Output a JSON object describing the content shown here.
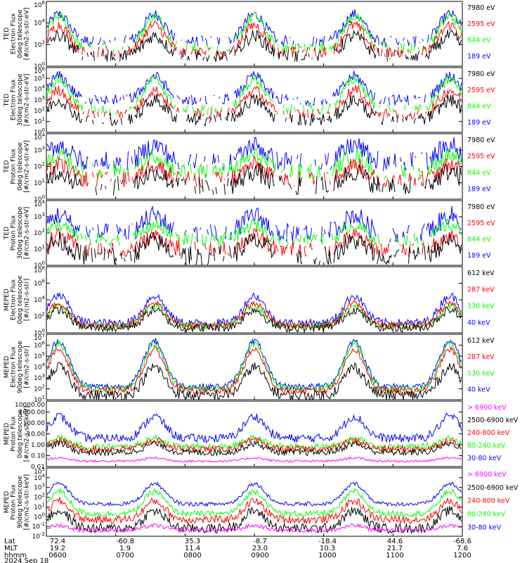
{
  "date_label": "2024 Sep 18",
  "ephemeris": {
    "row_labels": [
      "Lat",
      "MLT",
      "hhmm"
    ],
    "columns": [
      {
        "lat": "72.4",
        "mlt": "19.2",
        "hhmm": "0600"
      },
      {
        "lat": "-60.8",
        "mlt": "1.9",
        "hhmm": "0700"
      },
      {
        "lat": "35.3",
        "mlt": "11.4",
        "hhmm": "0800"
      },
      {
        "lat": "-8.7",
        "mlt": "23.0",
        "hhmm": "0900"
      },
      {
        "lat": "-18.4",
        "mlt": "10.3",
        "hhmm": "1000"
      },
      {
        "lat": "44.6",
        "mlt": "21.7",
        "hhmm": "1100"
      },
      {
        "lat": "-68.6",
        "mlt": "7.6",
        "hhmm": "1200"
      }
    ]
  },
  "colors": {
    "black": "#000000",
    "red": "#ff0000",
    "green": "#00ff00",
    "blue": "#0000ff",
    "magenta": "#ff00ff"
  },
  "chart_data": [
    {
      "type": "line",
      "ylabel": [
        "TED",
        "Electron Flux",
        "0deg telescope",
        "[#/cm2-s-str-eV]"
      ],
      "yscale": "log",
      "ylim_exp": [
        0,
        6
      ],
      "ytick_labels": [
        "10^0",
        "10^2",
        "10^4",
        "10^6"
      ],
      "legend": [
        {
          "label": "7980 eV",
          "color": "#000000"
        },
        {
          "label": "2595 eV",
          "color": "#ff0000"
        },
        {
          "label": "844 eV",
          "color": "#00ff00"
        },
        {
          "label": "189 eV",
          "color": "#0000ff"
        }
      ],
      "series": [
        {
          "color": "#0000ff",
          "base_log": 2.3,
          "peak_log": 4.8,
          "noise": 0.5
        },
        {
          "color": "#00ff00",
          "base_log": 1.7,
          "peak_log": 4.6,
          "noise": 0.5
        },
        {
          "color": "#ff0000",
          "base_log": 1.3,
          "peak_log": 3.8,
          "noise": 0.5
        },
        {
          "color": "#000000",
          "base_log": 1.0,
          "peak_log": 2.8,
          "noise": 0.6
        }
      ]
    },
    {
      "type": "line",
      "ylabel": [
        "TED",
        "Electron Flux",
        "30deg telescope",
        "[#/cm2-s-str-eV]"
      ],
      "yscale": "log",
      "ylim_exp": [
        0,
        6
      ],
      "ytick_labels": [
        "10^0",
        "10^1",
        "10^2",
        "10^3",
        "10^4",
        "10^5",
        "10^6"
      ],
      "legend": [
        {
          "label": "7980 eV",
          "color": "#000000"
        },
        {
          "label": "2595 eV",
          "color": "#ff0000"
        },
        {
          "label": "844 eV",
          "color": "#00ff00"
        },
        {
          "label": "189 eV",
          "color": "#0000ff"
        }
      ],
      "series": [
        {
          "color": "#0000ff",
          "base_log": 3.0,
          "peak_log": 5.2,
          "noise": 0.5
        },
        {
          "color": "#00ff00",
          "base_log": 2.1,
          "peak_log": 4.9,
          "noise": 0.5
        },
        {
          "color": "#ff0000",
          "base_log": 1.7,
          "peak_log": 3.9,
          "noise": 0.5
        },
        {
          "color": "#000000",
          "base_log": 1.2,
          "peak_log": 3.0,
          "noise": 0.6
        }
      ]
    },
    {
      "type": "line",
      "ylabel": [
        "TED",
        "Proton Flux",
        "0deg telescope",
        "[#/cm2-s-str-eV]"
      ],
      "yscale": "log",
      "ylim_exp": [
        0,
        4
      ],
      "ytick_labels": [
        "10^0",
        "10^1",
        "10^2",
        "10^3",
        "10^4"
      ],
      "legend": [
        {
          "label": "7980 eV",
          "color": "#000000"
        },
        {
          "label": "2595 eV",
          "color": "#ff0000"
        },
        {
          "label": "844 eV",
          "color": "#00ff00"
        },
        {
          "label": "189 eV",
          "color": "#0000ff"
        }
      ],
      "series": [
        {
          "color": "#0000ff",
          "base_log": 2.3,
          "peak_log": 3.3,
          "noise": 0.6
        },
        {
          "color": "#00ff00",
          "base_log": 1.7,
          "peak_log": 2.7,
          "noise": 0.5
        },
        {
          "color": "#ff0000",
          "base_log": 1.2,
          "peak_log": 2.1,
          "noise": 0.5
        },
        {
          "color": "#000000",
          "base_log": 0.8,
          "peak_log": 1.7,
          "noise": 0.6
        }
      ]
    },
    {
      "type": "line",
      "ylabel": [
        "TED",
        "Proton Flux",
        "30deg telescope",
        "[#/cm2-s-str-eV]"
      ],
      "yscale": "log",
      "ylim_exp": [
        0,
        4
      ],
      "ytick_labels": [
        "10^0",
        "10^1",
        "10^2",
        "10^3",
        "10^4"
      ],
      "legend": [
        {
          "label": "7980 eV",
          "color": "#000000"
        },
        {
          "label": "2595 eV",
          "color": "#ff0000"
        },
        {
          "label": "844 eV",
          "color": "#00ff00"
        },
        {
          "label": "189 eV",
          "color": "#0000ff"
        }
      ],
      "series": [
        {
          "color": "#0000ff",
          "base_log": 2.0,
          "peak_log": 3.1,
          "noise": 0.6
        },
        {
          "color": "#00ff00",
          "base_log": 1.6,
          "peak_log": 2.5,
          "noise": 0.4
        },
        {
          "color": "#ff0000",
          "base_log": 1.0,
          "peak_log": 1.8,
          "noise": 0.5
        },
        {
          "color": "#000000",
          "base_log": 0.6,
          "peak_log": 1.5,
          "noise": 0.6
        }
      ]
    },
    {
      "type": "line",
      "ylabel": [
        "MEPED",
        "Electron Flux",
        "0deg telescope",
        "[#/cm2-s-str]"
      ],
      "yscale": "log",
      "ylim_exp": [
        0,
        8
      ],
      "ytick_labels": [
        "10^0",
        "10^2",
        "10^4",
        "10^6",
        "10^8"
      ],
      "legend": [
        {
          "label": "612 keV",
          "color": "#000000"
        },
        {
          "label": "287 keV",
          "color": "#ff0000"
        },
        {
          "label": "130 keV",
          "color": "#00ff00"
        },
        {
          "label": "40 keV",
          "color": "#0000ff"
        }
      ],
      "series": [
        {
          "color": "#0000ff",
          "base_log": 1.2,
          "peak_log": 4.5,
          "noise": 0.5
        },
        {
          "color": "#00ff00",
          "base_log": 0.8,
          "peak_log": 3.3,
          "noise": 0.4
        },
        {
          "color": "#ff0000",
          "base_log": 0.9,
          "peak_log": 3.6,
          "noise": 0.4
        },
        {
          "color": "#000000",
          "base_log": 0.6,
          "peak_log": 2.8,
          "noise": 0.5
        }
      ]
    },
    {
      "type": "line",
      "ylabel": [
        "MEPED",
        "Electron Flux",
        "90deg telescope",
        "[#/cm2-s-str]"
      ],
      "yscale": "log",
      "ylim_exp": [
        1,
        7
      ],
      "ytick_labels": [
        "10^1",
        "10^2",
        "10^3",
        "10^4",
        "10^5",
        "10^6",
        "10^7"
      ],
      "legend": [
        {
          "label": "612 keV",
          "color": "#000000"
        },
        {
          "label": "287 keV",
          "color": "#ff0000"
        },
        {
          "label": "130 keV",
          "color": "#00ff00"
        },
        {
          "label": "40 keV",
          "color": "#0000ff"
        }
      ],
      "series": [
        {
          "color": "#0000ff",
          "base_log": 2.2,
          "peak_log": 6.4,
          "noise": 0.3
        },
        {
          "color": "#00ff00",
          "base_log": 2.0,
          "peak_log": 6.1,
          "noise": 0.3
        },
        {
          "color": "#ff0000",
          "base_log": 1.8,
          "peak_log": 5.6,
          "noise": 0.3
        },
        {
          "color": "#000000",
          "base_log": 1.4,
          "peak_log": 4.0,
          "noise": 0.5
        }
      ]
    },
    {
      "type": "line",
      "ylabel": [
        "MEPED",
        "Proton Flux",
        "0deg telescope",
        "[#/cm2-s-str-keV]"
      ],
      "yscale": "log",
      "ylim_exp": [
        -2,
        4
      ],
      "ytick_labels": [
        "0.01",
        "0.10",
        "1.00",
        "10.00",
        "100.00",
        "1000.00",
        "10000.00"
      ],
      "legend": [
        {
          "label": "> 6900 keV",
          "color": "#ff00ff"
        },
        {
          "label": "2500-6900 keV",
          "color": "#000000"
        },
        {
          "label": "240-800 keV",
          "color": "#ff0000"
        },
        {
          "label": "80-240 keV",
          "color": "#00ff00"
        },
        {
          "label": "30-80 keV",
          "color": "#0000ff"
        }
      ],
      "series": [
        {
          "color": "#0000ff",
          "base_log": 0.6,
          "peak_log": 2.6,
          "noise": 0.4
        },
        {
          "color": "#00ff00",
          "base_log": -0.2,
          "peak_log": 0.6,
          "noise": 0.3
        },
        {
          "color": "#ff0000",
          "base_log": -0.4,
          "peak_log": 0.4,
          "noise": 0.3
        },
        {
          "color": "#000000",
          "base_log": -0.7,
          "peak_log": 0.1,
          "noise": 0.3
        },
        {
          "color": "#ff00ff",
          "base_log": -1.5,
          "peak_log": -1.2,
          "noise": 0.1
        }
      ]
    },
    {
      "type": "line",
      "ylabel": [
        "MEPED",
        "Proton Flux",
        "90deg telescope",
        "[#/cm2-s-str-keV]"
      ],
      "yscale": "log",
      "ylim_exp": [
        -2,
        5
      ],
      "ytick_labels": [
        "10^-2",
        "10^-1",
        "10^0",
        "10^1",
        "10^2",
        "10^3",
        "10^4",
        "10^5"
      ],
      "legend": [
        {
          "label": "> 6900 keV",
          "color": "#ff00ff"
        },
        {
          "label": "2500-6900 keV",
          "color": "#000000"
        },
        {
          "label": "240-800 keV",
          "color": "#ff0000"
        },
        {
          "label": "80-240 keV",
          "color": "#00ff00"
        },
        {
          "label": "30-80 keV",
          "color": "#0000ff"
        }
      ],
      "series": [
        {
          "color": "#0000ff",
          "base_log": 1.3,
          "peak_log": 3.4,
          "noise": 0.2
        },
        {
          "color": "#00ff00",
          "base_log": 0.3,
          "peak_log": 2.6,
          "noise": 0.3
        },
        {
          "color": "#ff0000",
          "base_log": -0.3,
          "peak_log": 1.6,
          "noise": 0.4
        },
        {
          "color": "#000000",
          "base_log": -1.2,
          "peak_log": 0.6,
          "noise": 0.5
        },
        {
          "color": "#ff00ff",
          "base_log": -1.4,
          "peak_log": -0.9,
          "noise": 0.2
        }
      ]
    }
  ]
}
